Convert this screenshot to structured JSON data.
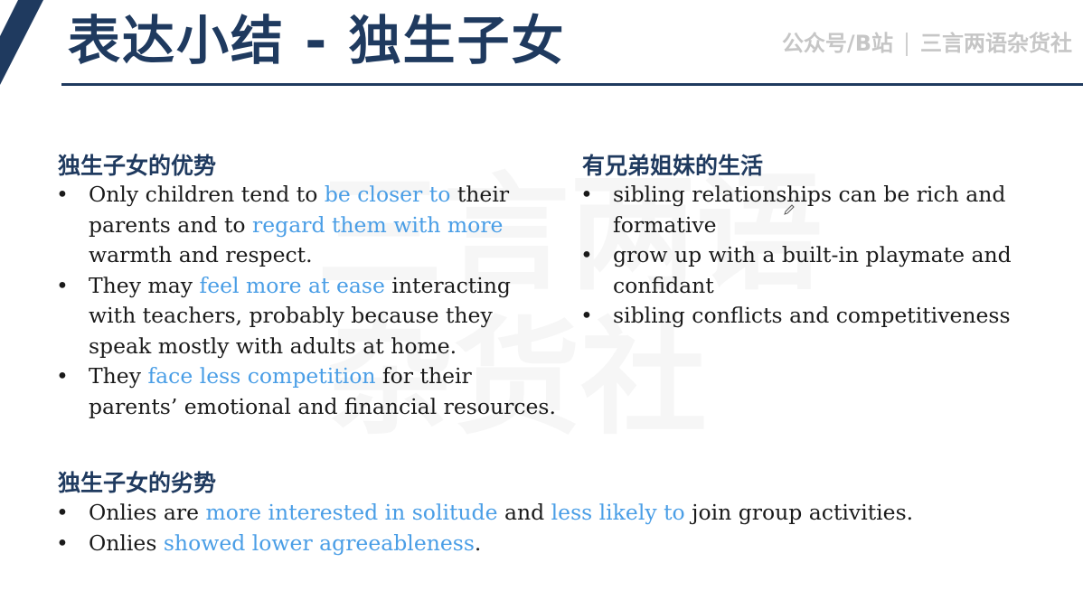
{
  "header": {
    "title": "表达小结 - 独生子女",
    "brand_left": "公众号/B站",
    "brand_right": "三言两语杂货社"
  },
  "watermark": {
    "line1": "三言两语",
    "line2": "杂货社"
  },
  "advantages": {
    "heading": "独生子女的优势",
    "items": [
      {
        "parts": [
          "Only children tend to ",
          "be closer to",
          " their parents and to ",
          "regard them with more",
          " warmth and respect."
        ]
      },
      {
        "parts": [
          "They may ",
          "feel more at ease",
          " interacting with teachers, probably because they speak mostly with adults at home."
        ]
      },
      {
        "parts": [
          "They ",
          "face less competition",
          " for their parents’ emotional and financial resources."
        ]
      }
    ]
  },
  "siblings": {
    "heading": "有兄弟姐妹的生活",
    "items": [
      "sibling relationships can be rich and formative",
      "grow up with a built-in playmate and confidant",
      "sibling conflicts and competitiveness"
    ]
  },
  "disadvantages": {
    "heading": "独生子女的劣势",
    "items": [
      {
        "parts": [
          "Onlies are ",
          "more interested in solitude",
          " and ",
          "less likely to",
          " join group activities."
        ]
      },
      {
        "parts": [
          "Onlies ",
          "showed lower agreeableness",
          "."
        ]
      }
    ]
  },
  "colors": {
    "accent_navy": "#1f3a5f",
    "highlight_blue": "#4a9ee6"
  }
}
